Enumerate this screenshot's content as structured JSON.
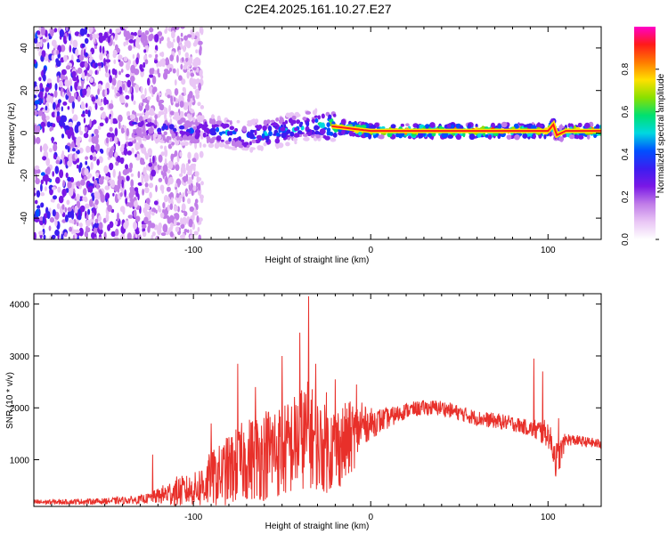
{
  "title": "C2E4.2025.161.10.27.E27",
  "colors": {
    "snr_line": "#e8302a",
    "axis": "#000000",
    "spectrogram_cmap": [
      "#ffffff",
      "#e9c6f5",
      "#c07ce8",
      "#7a18e6",
      "#3c1df0",
      "#0050ff",
      "#00d8e0",
      "#00e070",
      "#8ae000",
      "#ffe000",
      "#ff7a00",
      "#ff1a1a",
      "#ff00c8"
    ]
  },
  "chart_data": [
    {
      "type": "heatmap",
      "panel": "spectrogram",
      "xlabel": "Height of straight line (km)",
      "ylabel": "Frequency (Hz)",
      "xlim": [
        -190,
        130
      ],
      "ylim": [
        -50,
        50
      ],
      "xticks": [
        -100,
        0,
        100
      ],
      "yticks": [
        -40,
        -20,
        0,
        20,
        40
      ],
      "colorbar": {
        "label": "Normalized spectral amplitude",
        "range": [
          0,
          1
        ],
        "ticks": [
          "0.0",
          "0.2",
          "0.4",
          "0.6",
          "0.8"
        ]
      },
      "ridge": {
        "x": [
          -125,
          -110,
          -100,
          -90,
          -80,
          -70,
          -60,
          -50,
          -40,
          -30,
          -20,
          -10,
          0,
          10,
          20,
          40,
          60,
          80,
          95,
          100,
          103,
          105,
          110,
          130
        ],
        "freq": [
          3,
          2,
          1,
          1,
          0,
          -2,
          0,
          1,
          3,
          4,
          3,
          2,
          1,
          1,
          1,
          1,
          1,
          1,
          1,
          1,
          4,
          -1,
          1,
          1
        ],
        "amplitude": [
          0.35,
          0.4,
          0.35,
          0.4,
          0.45,
          0.45,
          0.5,
          0.5,
          0.5,
          0.55,
          0.9,
          0.9,
          0.85,
          0.9,
          0.95,
          0.95,
          0.95,
          0.95,
          0.9,
          0.9,
          0.8,
          0.6,
          0.9,
          0.9
        ]
      }
    },
    {
      "type": "line",
      "panel": "snr",
      "xlabel": "Height of straight line (km)",
      "ylabel": "SNR (10 * v/v)",
      "xlim": [
        -190,
        130
      ],
      "ylim": [
        100,
        4200
      ],
      "xticks": [
        -100,
        0,
        100
      ],
      "yticks": [
        1000,
        2000,
        3000,
        4000
      ],
      "series": [
        {
          "x": [
            -190,
            -170,
            -150,
            -130,
            -125,
            -120,
            -110,
            -100,
            -95,
            -90,
            -85,
            -80,
            -75,
            -70,
            -65,
            -60,
            -55,
            -50,
            -45,
            -40,
            -35,
            -30,
            -25,
            -20,
            -15,
            -10,
            -5,
            0,
            5,
            10,
            20,
            30,
            40,
            50,
            60,
            70,
            80,
            90,
            95,
            100,
            103,
            105,
            110,
            120,
            130
          ],
          "y": [
            180,
            190,
            200,
            230,
            260,
            300,
            380,
            420,
            500,
            620,
            700,
            800,
            900,
            1000,
            1050,
            1100,
            1200,
            1150,
            1250,
            1400,
            1500,
            1300,
            1200,
            1250,
            1300,
            1450,
            1650,
            1700,
            1750,
            1800,
            1950,
            2000,
            2000,
            1900,
            1800,
            1750,
            1700,
            1600,
            1550,
            1500,
            1200,
            950,
            1400,
            1350,
            1300
          ],
          "spread": [
            50,
            50,
            60,
            80,
            100,
            150,
            300,
            300,
            450,
            550,
            600,
            700,
            750,
            800,
            850,
            900,
            950,
            900,
            950,
            1000,
            1050,
            900,
            850,
            850,
            800,
            700,
            400,
            300,
            250,
            200,
            150,
            150,
            150,
            150,
            150,
            150,
            150,
            150,
            250,
            250,
            300,
            400,
            120,
            100,
            100
          ],
          "spikes": [
            [
              -123,
              1100
            ],
            [
              -90,
              1700
            ],
            [
              -75,
              2850
            ],
            [
              -65,
              2400
            ],
            [
              -50,
              3000
            ],
            [
              -40,
              3450
            ],
            [
              -35,
              4150
            ],
            [
              -31,
              2850
            ],
            [
              -25,
              2300
            ],
            [
              -20,
              2550
            ],
            [
              -8,
              2450
            ],
            [
              -5,
              2100
            ],
            [
              14,
              1900
            ],
            [
              92,
              2950
            ],
            [
              97,
              2700
            ],
            [
              106,
              1800
            ]
          ]
        }
      ]
    }
  ]
}
